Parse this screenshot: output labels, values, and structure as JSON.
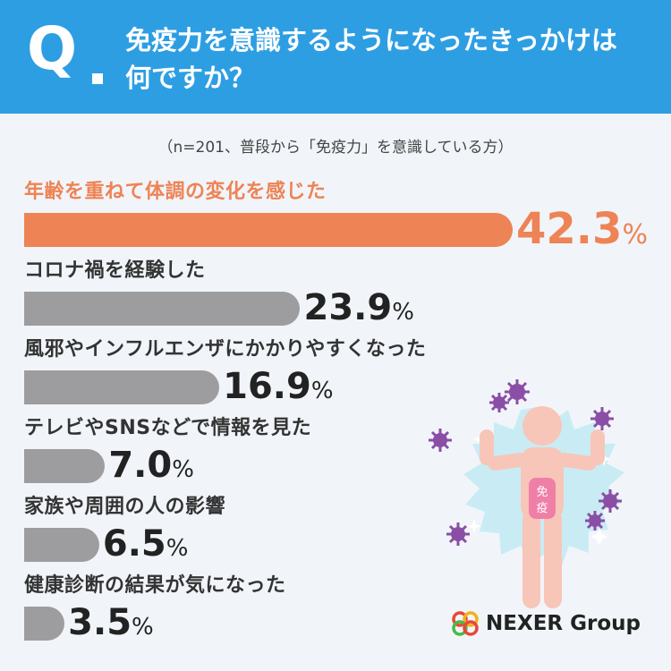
{
  "header": {
    "q_mark": "Q",
    "question_line1": "免疫力を意識するようになったきっかけは",
    "question_line2": "何ですか？"
  },
  "subtitle": "（n=201、普段から「免疫力」を意識している方）",
  "colors": {
    "header_bg": "#2e9ee3",
    "highlight": "#ee8355",
    "bar_gray": "#9d9d9f",
    "background": "#f1f5f9"
  },
  "chart_data": {
    "type": "bar",
    "orientation": "horizontal",
    "unit": "%",
    "xlim": [
      0,
      42.3
    ],
    "categories": [
      "年齢を重ねて体調の変化を感じた",
      "コロナ禍を経験した",
      "風邪やインフルエンザにかかりやすくなった",
      "テレビやSNSなどで情報を見た",
      "家族や周囲の人の影響",
      "健康診断の結果が気になった"
    ],
    "values": [
      42.3,
      23.9,
      16.9,
      7.0,
      6.5,
      3.5
    ],
    "value_labels": [
      "42.3",
      "23.9",
      "16.9",
      "7.0",
      "6.5",
      "3.5"
    ],
    "highlight_index": 0
  },
  "illustration": {
    "badge_text_1": "免",
    "badge_text_2": "疫"
  },
  "logo": {
    "text": "NEXER Group"
  }
}
